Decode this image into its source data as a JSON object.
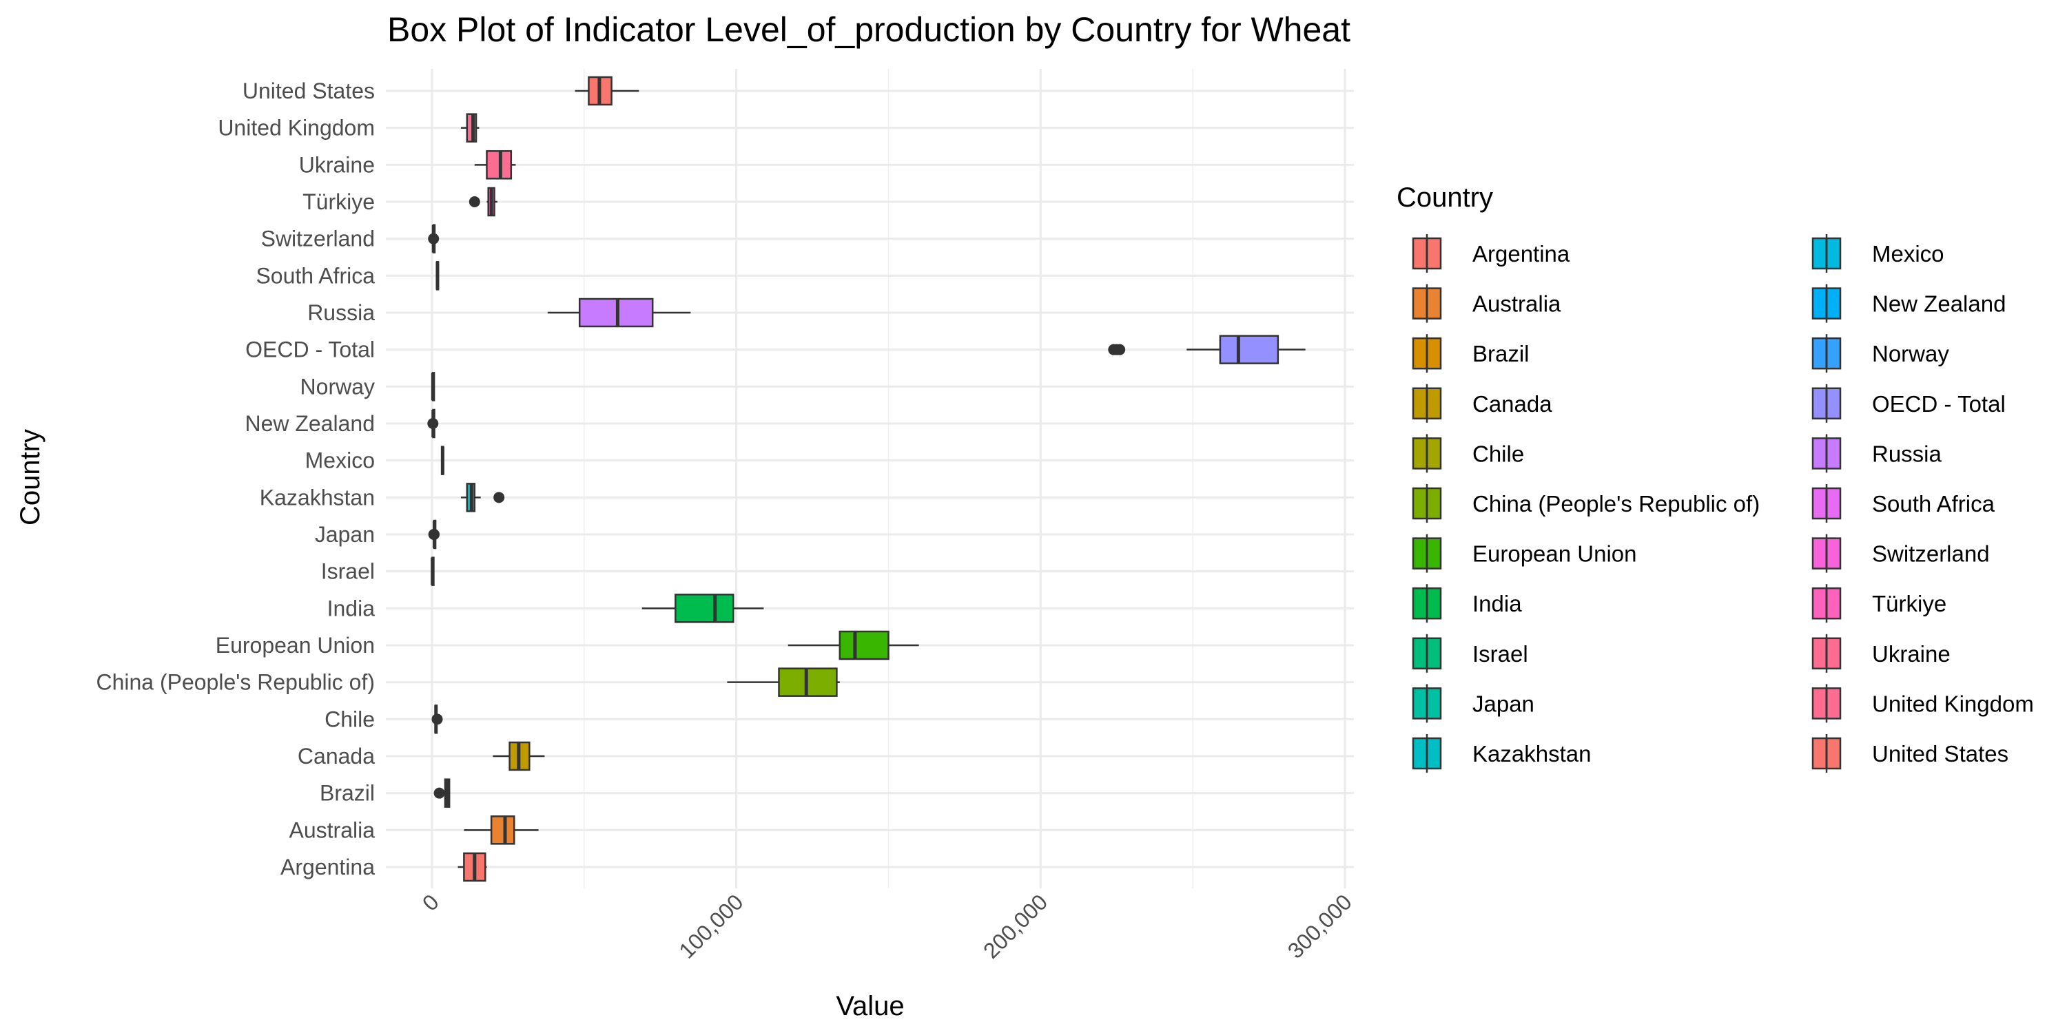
{
  "chart_data": {
    "type": "boxplot",
    "title": "Box Plot of Indicator Level_of_production by Country for Wheat",
    "xlabel": "Value",
    "ylabel": "Country",
    "xlim": [
      -7000,
      303000
    ],
    "x_ticks": [
      0,
      100000,
      200000,
      300000
    ],
    "x_tick_labels": [
      "0",
      "100,000",
      "200,000",
      "300,000"
    ],
    "grid": true,
    "legend": {
      "title": "Country",
      "position": "right",
      "columns": 2
    },
    "categories": [
      "Argentina",
      "Australia",
      "Brazil",
      "Canada",
      "Chile",
      "China (People's Republic of)",
      "European Union",
      "India",
      "Israel",
      "Japan",
      "Kazakhstan",
      "Mexico",
      "New Zealand",
      "Norway",
      "OECD - Total",
      "Russia",
      "South Africa",
      "Switzerland",
      "Türkiye",
      "Ukraine",
      "United Kingdom",
      "United States"
    ],
    "colors": [
      "#F8766D",
      "#EA8331",
      "#D89000",
      "#C09B00",
      "#A3A500",
      "#7CAE00",
      "#39B600",
      "#00BB4E",
      "#00BF7D",
      "#00C1A3",
      "#00BFC4",
      "#00BAE0",
      "#00B0F6",
      "#35A2FF",
      "#9590FF",
      "#C77CFF",
      "#E76BF3",
      "#FA62DB",
      "#FF62BC",
      "#FF6C91",
      "#FF6C91",
      "#F8766D"
    ],
    "boxes": [
      {
        "name": "Argentina",
        "whisker_low": 8500,
        "q1": 10500,
        "median": 14000,
        "q3": 17500,
        "whisker_high": 18000,
        "outliers": []
      },
      {
        "name": "Australia",
        "whisker_low": 10500,
        "q1": 19500,
        "median": 24000,
        "q3": 27000,
        "whisker_high": 35000,
        "outliers": []
      },
      {
        "name": "Brazil",
        "whisker_low": 4000,
        "q1": 4300,
        "median": 5000,
        "q3": 5700,
        "whisker_high": 6000,
        "outliers": [
          2400
        ]
      },
      {
        "name": "Canada",
        "whisker_low": 20000,
        "q1": 25500,
        "median": 28500,
        "q3": 32000,
        "whisker_high": 37000,
        "outliers": []
      },
      {
        "name": "Chile",
        "whisker_low": 800,
        "q1": 1100,
        "median": 1300,
        "q3": 1500,
        "whisker_high": 1800,
        "outliers": [
          1700
        ]
      },
      {
        "name": "China (People's Republic of)",
        "whisker_low": 97000,
        "q1": 114000,
        "median": 123000,
        "q3": 133000,
        "whisker_high": 134000,
        "outliers": []
      },
      {
        "name": "European Union",
        "whisker_low": 117000,
        "q1": 134000,
        "median": 139000,
        "q3": 150000,
        "whisker_high": 160000,
        "outliers": []
      },
      {
        "name": "India",
        "whisker_low": 69000,
        "q1": 80000,
        "median": 93000,
        "q3": 99000,
        "whisker_high": 109000,
        "outliers": []
      },
      {
        "name": "Israel",
        "whisker_low": 50,
        "q1": 100,
        "median": 150,
        "q3": 200,
        "whisker_high": 300,
        "outliers": []
      },
      {
        "name": "Japan",
        "whisker_low": 600,
        "q1": 700,
        "median": 800,
        "q3": 900,
        "whisker_high": 1100,
        "outliers": [
          600,
          700
        ]
      },
      {
        "name": "Kazakhstan",
        "whisker_low": 9500,
        "q1": 11500,
        "median": 13000,
        "q3": 14000,
        "whisker_high": 16000,
        "outliers": [
          22000
        ]
      },
      {
        "name": "Mexico",
        "whisker_low": 3000,
        "q1": 3200,
        "median": 3500,
        "q3": 3700,
        "whisker_high": 4000,
        "outliers": []
      },
      {
        "name": "New Zealand",
        "whisker_low": 300,
        "q1": 350,
        "median": 400,
        "q3": 450,
        "whisker_high": 500,
        "outliers": [
          300
        ]
      },
      {
        "name": "Norway",
        "whisker_low": 200,
        "q1": 250,
        "median": 300,
        "q3": 350,
        "whisker_high": 450,
        "outliers": []
      },
      {
        "name": "OECD - Total",
        "whisker_low": 248000,
        "q1": 259000,
        "median": 265000,
        "q3": 278000,
        "whisker_high": 287000,
        "outliers": [
          224000,
          225000,
          226000
        ]
      },
      {
        "name": "Russia",
        "whisker_low": 38000,
        "q1": 48500,
        "median": 61000,
        "q3": 72500,
        "whisker_high": 85000,
        "outliers": []
      },
      {
        "name": "South Africa",
        "whisker_low": 1500,
        "q1": 1600,
        "median": 1800,
        "q3": 2000,
        "whisker_high": 2200,
        "outliers": []
      },
      {
        "name": "Switzerland",
        "whisker_low": 400,
        "q1": 450,
        "median": 500,
        "q3": 550,
        "whisker_high": 600,
        "outliers": [
          500
        ]
      },
      {
        "name": "Türkiye",
        "whisker_low": 18000,
        "q1": 18500,
        "median": 19500,
        "q3": 20500,
        "whisker_high": 21500,
        "outliers": [
          14000
        ]
      },
      {
        "name": "Ukraine",
        "whisker_low": 14000,
        "q1": 18000,
        "median": 22500,
        "q3": 26000,
        "whisker_high": 27500,
        "outliers": []
      },
      {
        "name": "United Kingdom",
        "whisker_low": 9500,
        "q1": 11500,
        "median": 13500,
        "q3": 14500,
        "whisker_high": 15500,
        "outliers": []
      },
      {
        "name": "United States",
        "whisker_low": 47000,
        "q1": 51500,
        "median": 55000,
        "q3": 59000,
        "whisker_high": 68000,
        "outliers": []
      }
    ]
  }
}
